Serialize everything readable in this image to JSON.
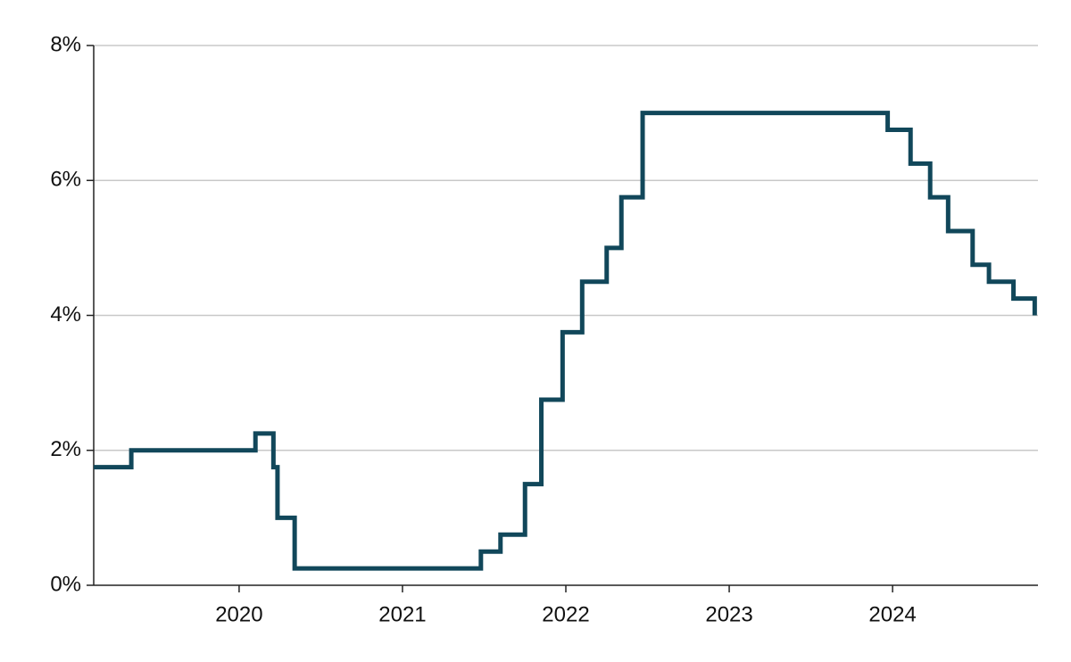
{
  "chart_data": {
    "type": "line",
    "step": "post",
    "x": [
      2019.11,
      2019.34,
      2020.1,
      2020.21,
      2020.235,
      2020.34,
      2021.48,
      2021.6,
      2021.75,
      2021.85,
      2021.98,
      2022.1,
      2022.25,
      2022.34,
      2022.47,
      2023.97,
      2024.11,
      2024.23,
      2024.34,
      2024.49,
      2024.59,
      2024.74,
      2024.87
    ],
    "series": [
      {
        "color": "#11475a",
        "values": [
          1.75,
          2.0,
          2.25,
          1.75,
          1.0,
          0.25,
          0.5,
          0.75,
          1.5,
          2.75,
          3.75,
          4.5,
          5.0,
          5.75,
          7.0,
          6.75,
          6.25,
          5.75,
          5.25,
          4.75,
          4.5,
          4.25,
          4.0
        ]
      }
    ],
    "xlim": [
      2019.11,
      2024.89
    ],
    "xticks": [
      2020,
      2021,
      2022,
      2023,
      2024
    ],
    "ylim": [
      0,
      8
    ],
    "yticks": [
      {
        "value": 0,
        "label": "0%"
      },
      {
        "value": 2,
        "label": "2%"
      },
      {
        "value": 4,
        "label": "4%"
      },
      {
        "value": 6,
        "label": "6%"
      },
      {
        "value": 8,
        "label": "8%"
      }
    ],
    "grid": true
  }
}
